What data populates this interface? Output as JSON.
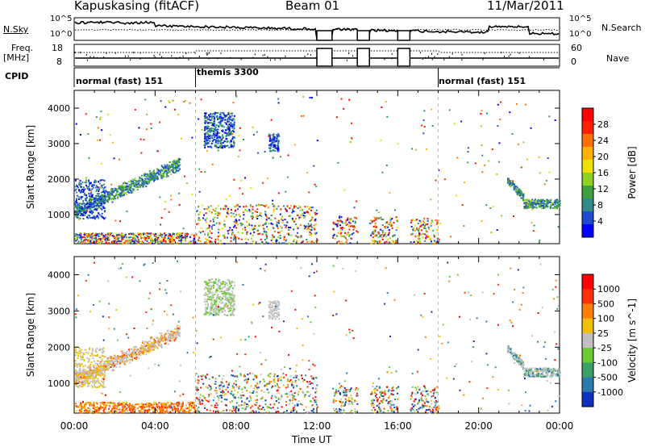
{
  "header": {
    "station": "Kapuskasing (fitACF)",
    "beam": "Beam 01",
    "date": "11/Mar/2011"
  },
  "noise_panel": {
    "left_label": "N.Sky",
    "right_label": "N.Search",
    "tick_top": "10^5",
    "tick_bottom": "10^0"
  },
  "freq_panel": {
    "left_label_1": "Freq.",
    "left_label_2": "[MHz]",
    "right_label": "Nave",
    "left_ticks": [
      "18",
      "8"
    ],
    "right_ticks": [
      "60",
      "0"
    ]
  },
  "cpid": {
    "label": "CPID",
    "modes": [
      {
        "name": "normal (fast) 151",
        "start_hour": 0,
        "end_hour": 6
      },
      {
        "name": "themis 3300",
        "start_hour": 6,
        "end_hour": 18
      },
      {
        "name": "normal (fast) 151",
        "start_hour": 18,
        "end_hour": 24
      }
    ]
  },
  "time_axis": {
    "xlabel": "Time UT",
    "ticks": [
      "00:00",
      "04:00",
      "08:00",
      "12:00",
      "16:00",
      "20:00",
      "00:00"
    ]
  },
  "chart_data": [
    {
      "type": "heatmap",
      "name": "power",
      "xlabel": "Time UT",
      "ylabel": "Slant Range [km]",
      "x_range_hours": [
        0,
        24
      ],
      "ylim": [
        180,
        4500
      ],
      "y_ticks": [
        1000,
        2000,
        3000,
        4000
      ],
      "colorbar_label": "Power [dB]",
      "colorbar_ticks": [
        "28",
        "24",
        "20",
        "16",
        "12",
        "8",
        "4"
      ],
      "colorbar_colors": [
        "#0000ff",
        "#1f4bd0",
        "#2f8a8a",
        "#3fa040",
        "#90d020",
        "#f0e000",
        "#ffb000",
        "#ff7000",
        "#ff2000",
        "#ff0000"
      ],
      "data_gaps_hours": [
        [
          12,
          12.75
        ],
        [
          14,
          14.6
        ],
        [
          16,
          16.6
        ]
      ],
      "features": [
        {
          "desc": "arc",
          "start_hour": 0,
          "end_hour": 5,
          "range_start_km": 1100,
          "range_end_km": 2400
        },
        {
          "desc": "patch",
          "start_hour": 6.4,
          "end_hour": 7.8,
          "range_start_km": 2900,
          "range_end_km": 3900
        },
        {
          "desc": "band",
          "start_hour": 21.5,
          "end_hour": 24,
          "range_start_km": 1200,
          "range_end_km": 1400
        }
      ]
    },
    {
      "type": "heatmap",
      "name": "velocity",
      "xlabel": "Time UT",
      "ylabel": "Slant Range [km]",
      "x_range_hours": [
        0,
        24
      ],
      "ylim": [
        180,
        4500
      ],
      "y_ticks": [
        1000,
        2000,
        3000,
        4000
      ],
      "colorbar_label": "Velocity [m s^-1]",
      "colorbar_ticks": [
        "1000",
        "500",
        "100",
        "25",
        "-25",
        "-100",
        "-500",
        "-1000"
      ],
      "colorbar_colors": [
        "#1030c0",
        "#2a7ab0",
        "#3aa06a",
        "#6acc30",
        "#c0c0c0",
        "#f0c000",
        "#ff8000",
        "#ff3000",
        "#ff0000"
      ]
    }
  ]
}
